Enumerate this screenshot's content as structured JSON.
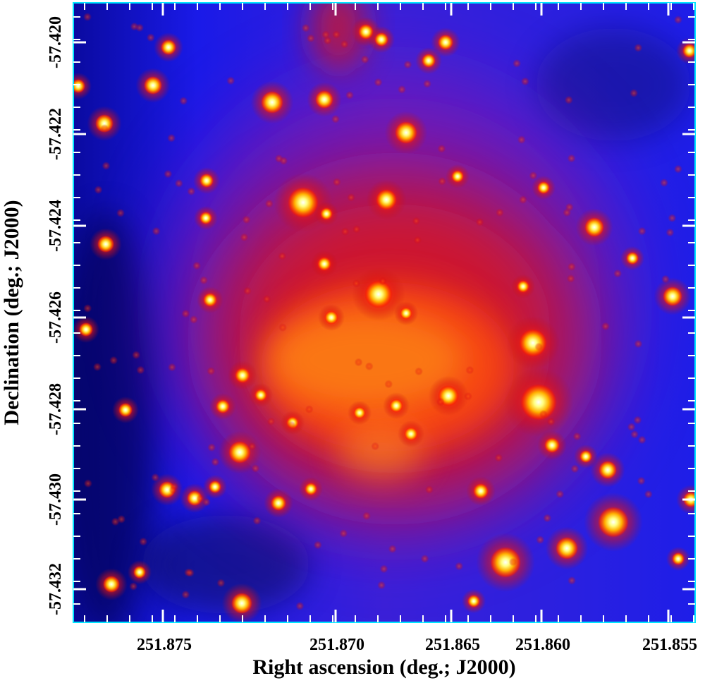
{
  "figure": {
    "xlabel": "Right ascension (deg.; J2000)",
    "ylabel": "Declination (deg.; J2000)",
    "x_ticks": [
      "251.875",
      "251.870",
      "251.865",
      "251.860",
      "251.855"
    ],
    "y_ticks": [
      "-57.420",
      "-57.422",
      "-57.424",
      "-57.426",
      "-57.428",
      "-57.430",
      "-57.432"
    ],
    "colormap": [
      "#000018",
      "#0a0a8a",
      "#1e1ef0",
      "#7a1ea8",
      "#e01818",
      "#ff4a0a",
      "#ffb40a",
      "#ffff60",
      "#ffffff"
    ],
    "frame_color": "#00e5ff",
    "tick_color": "#ffffff"
  }
}
